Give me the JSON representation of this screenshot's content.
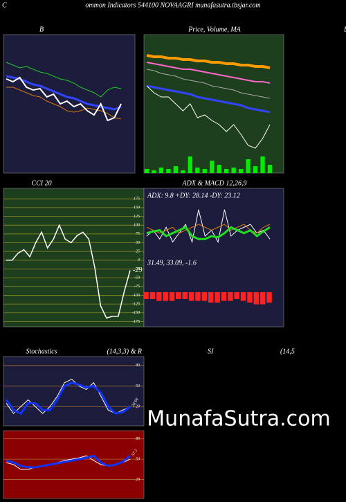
{
  "header": {
    "left": "C",
    "title": "ommon Indicators 544100  NOVAAGRI munafasutra.tbsjar.com",
    "right_letter": "B",
    "rsi_title": "SI",
    "rsi_params": "(14,5"
  },
  "watermark": "MunafaSutra.com",
  "chart_data": [
    {
      "type": "line",
      "title": "B",
      "ylim": [
        0,
        100
      ],
      "series": [
        {
          "color": "#22cc22",
          "width": 1,
          "values": [
            80,
            78,
            76,
            77,
            75,
            73,
            72,
            70,
            68,
            67,
            65,
            62,
            60,
            58,
            55,
            60,
            62,
            61
          ]
        },
        {
          "color": "#3344ff",
          "width": 3,
          "values": [
            70,
            69,
            68,
            66,
            64,
            63,
            61,
            59,
            57,
            55,
            54,
            52,
            50,
            49,
            48,
            47,
            46,
            48
          ]
        },
        {
          "color": "#dd7711",
          "width": 1,
          "values": [
            62,
            62,
            60,
            58,
            56,
            55,
            52,
            50,
            48,
            45,
            44,
            45,
            47,
            46,
            45,
            43,
            40,
            39
          ]
        },
        {
          "color": "#ffffff",
          "width": 2,
          "values": [
            68,
            66,
            69,
            62,
            60,
            61,
            55,
            57,
            50,
            52,
            48,
            50,
            45,
            42,
            50,
            38,
            40,
            50
          ]
        }
      ]
    },
    {
      "type": "line",
      "title": "Price, Volume, MA",
      "ylim": [
        0,
        100
      ],
      "y2lim": [
        0,
        100
      ],
      "series": [
        {
          "color": "#ff9900",
          "width": 4,
          "values": [
            85,
            84,
            84,
            83,
            83,
            82,
            82,
            81,
            81,
            80,
            80,
            79,
            79,
            78,
            78,
            77,
            77,
            76
          ]
        },
        {
          "color": "#ff66cc",
          "width": 2,
          "values": [
            80,
            79,
            78,
            77,
            76,
            75,
            75,
            74,
            73,
            72,
            71,
            70,
            69,
            68,
            67,
            66,
            66,
            65
          ]
        },
        {
          "color": "#aaaaaa",
          "width": 1,
          "values": [
            75,
            74,
            72,
            71,
            70,
            68,
            67,
            66,
            65,
            63,
            62,
            61,
            60,
            58,
            57,
            56,
            55,
            54
          ]
        },
        {
          "color": "#3344ff",
          "width": 3,
          "values": [
            63,
            62,
            61,
            60,
            59,
            58,
            57,
            55,
            54,
            53,
            52,
            51,
            50,
            49,
            47,
            46,
            45,
            44
          ]
        },
        {
          "color": "#ffffff",
          "width": 1,
          "values": [
            63,
            58,
            55,
            55,
            50,
            45,
            50,
            40,
            42,
            38,
            35,
            30,
            35,
            28,
            20,
            18,
            25,
            35
          ]
        }
      ],
      "volume": {
        "color": "#00ee00",
        "values": [
          3,
          2,
          4,
          3,
          5,
          2,
          12,
          4,
          3,
          9,
          6,
          3,
          4,
          3,
          10,
          5,
          12,
          6
        ]
      }
    },
    {
      "type": "line",
      "title": "CCI 20",
      "ylim": [
        -190,
        205
      ],
      "yticks": [
        175,
        150,
        125,
        100,
        75,
        50,
        25,
        0,
        -25,
        -50,
        -75,
        -100,
        -125,
        -150,
        -175
      ],
      "grid": true,
      "series": [
        {
          "color": "#ffffff",
          "width": 1.5,
          "values": [
            0,
            0,
            20,
            30,
            10,
            50,
            80,
            35,
            60,
            100,
            60,
            50,
            70,
            80,
            60,
            -20,
            -130,
            -165,
            -160,
            -160,
            -90,
            -29
          ]
        }
      ],
      "value_label": "-29"
    },
    {
      "type": "line",
      "title": "ADX  & MACD 12,26,9",
      "adx_label": "ADX: 9.8  +DY: 28.14  -DY: 23.12",
      "macd_label": "31.49,  33.09,  -1.6",
      "ylim": [
        0,
        100
      ],
      "y2lim": [
        -10,
        0
      ],
      "series": [
        {
          "color": "#ffffff",
          "width": 1,
          "values": [
            40,
            50,
            35,
            55,
            30,
            45,
            60,
            30,
            85,
            40,
            50,
            30,
            85,
            40,
            50,
            55,
            60,
            45,
            50,
            35
          ]
        },
        {
          "color": "#dd7711",
          "width": 1,
          "values": [
            55,
            50,
            45,
            50,
            55,
            45,
            50,
            55,
            60,
            55,
            50,
            55,
            60,
            50,
            55,
            60,
            50,
            45,
            55,
            60
          ]
        },
        {
          "color": "#22dd22",
          "width": 3,
          "values": [
            45,
            48,
            50,
            40,
            45,
            50,
            55,
            40,
            35,
            35,
            40,
            38,
            45,
            55,
            50,
            45,
            50,
            40,
            48,
            55
          ]
        }
      ],
      "histogram": {
        "color": "#ff2222",
        "values": [
          -4,
          -4,
          -5,
          -5,
          -5,
          -4,
          -4,
          -5,
          -5,
          -5,
          -6,
          -6,
          -5,
          -5,
          -4,
          -5,
          -6,
          -7,
          -7,
          -6
        ]
      }
    },
    {
      "type": "line",
      "title": "Stochastics",
      "params": "(14,3,3) & R",
      "ylim": [
        -8,
        93
      ],
      "yticks": [
        80,
        50,
        20
      ],
      "grid": true,
      "series": [
        {
          "color": "#ffffff",
          "width": 1,
          "values": [
            25,
            10,
            20,
            30,
            20,
            10,
            20,
            35,
            55,
            60,
            50,
            45,
            55,
            35,
            15,
            10,
            15,
            20
          ]
        },
        {
          "color": "#1133ff",
          "width": 3,
          "values": [
            30,
            15,
            10,
            25,
            25,
            15,
            15,
            30,
            50,
            55,
            52,
            48,
            50,
            40,
            20,
            10,
            12,
            20
          ]
        }
      ],
      "annotation": "20.94"
    },
    {
      "type": "line",
      "ylim": [
        -8,
        92
      ],
      "yticks": [
        80,
        50,
        20
      ],
      "grid": true,
      "series": [
        {
          "color": "#ffffff",
          "width": 1,
          "values": [
            45,
            42,
            35,
            35,
            38,
            40,
            42,
            45,
            48,
            50,
            52,
            55,
            48,
            42,
            40,
            42,
            45,
            50
          ]
        },
        {
          "color": "#1133ff",
          "width": 3,
          "values": [
            48,
            45,
            40,
            38,
            38,
            40,
            42,
            44,
            46,
            48,
            50,
            52,
            55,
            45,
            40,
            42,
            46,
            55
          ]
        }
      ],
      "annotation": "57.2"
    }
  ]
}
